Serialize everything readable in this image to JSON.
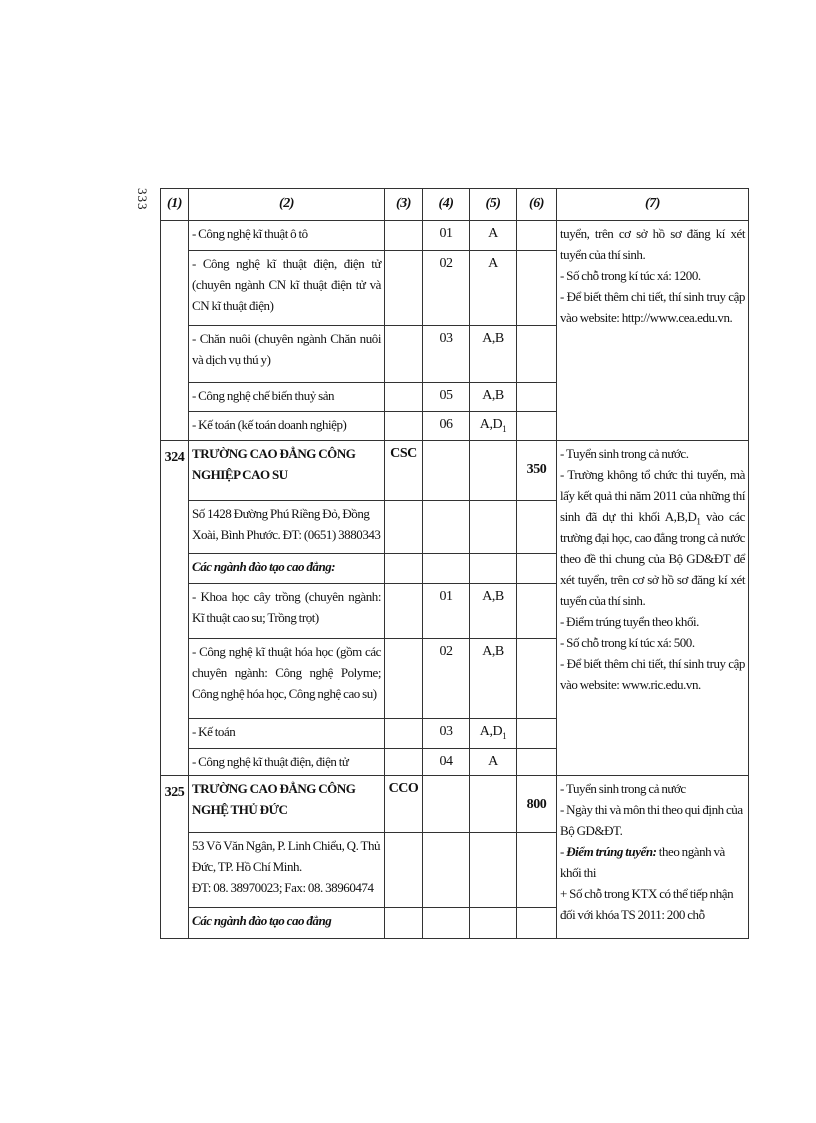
{
  "page_number": "333",
  "headers": [
    "(1)",
    "(2)",
    "(3)",
    "(4)",
    "(5)",
    "(6)",
    "(7)"
  ],
  "block1": {
    "rows": [
      {
        "name": "- Công nghệ kĩ thuật ô tô",
        "code": "01",
        "block": "A"
      },
      {
        "name": "- Công nghệ kĩ thuật điện, điện tử (chuyên ngành CN kĩ thuật điện tử và CN kĩ thuật điện)",
        "code": "02",
        "block": "A"
      },
      {
        "name": "- Chăn nuôi (chuyên ngành Chăn nuôi và dịch vụ thú y)",
        "code": "03",
        "block": "A,B"
      },
      {
        "name": "- Công nghệ chế biến thuỷ sản",
        "code": "05",
        "block": "A,B"
      },
      {
        "name": "- Kế toán (kế toán doanh nghiệp)",
        "code": "06",
        "block": "A,D",
        "block_sub": "1"
      }
    ],
    "notes": [
      "tuyển, trên cơ sở hồ sơ đăng kí xét tuyển của thí sinh.",
      "- Số chỗ trong kí túc xá: 1200.",
      "- Để biết thêm chi tiết, thí sinh truy cập vào website: http://www.cea.edu.vn."
    ]
  },
  "block2": {
    "id": "324",
    "school": "TRƯỜNG CAO ĐẲNG CÔNG NGHIỆP CAO SU",
    "symbol": "CSC",
    "quota": "350",
    "address": "Số 1428 Đường Phú Riềng Đỏ, Đồng Xoài, Bình Phước. ĐT: (0651) 3880343",
    "section": "Các ngành đào tạo cao đẳng:",
    "rows": [
      {
        "name": "- Khoa học cây trồng (chuyên ngành: Kĩ thuật cao su; Trồng trọt)",
        "code": "01",
        "block": "A,B"
      },
      {
        "name": "- Công nghệ kĩ thuật hóa học (gồm các chuyên ngành: Công nghệ Polyme; Công nghệ hóa học, Công nghệ cao su)",
        "code": "02",
        "block": "A,B"
      },
      {
        "name": "- Kế toán",
        "code": "03",
        "block": "A,D",
        "block_sub": "1"
      },
      {
        "name": "- Công nghệ kĩ thuật điện, điện tử",
        "code": "04",
        "block": "A"
      }
    ],
    "notes": {
      "n1": "- Tuyển sinh trong cả nước.",
      "n2a": "- Trường không tổ chức thi tuyển, mà lấy kết quả thi năm 2011 của những thí sinh đã dự thi khối A,B,D",
      "n2sub": "1",
      "n2b": " vào các trường đại học, cao đẳng trong cả nước theo đề thi chung của Bộ GD&ĐT để xét tuyển, trên cơ sở hồ sơ đăng kí xét tuyển của thí sinh.",
      "n3": "- Điểm trúng tuyển theo khối.",
      "n4": "- Số chỗ trong kí túc xá: 500.",
      "n5": "- Để biết thêm chi tiết, thí sinh truy cập vào website: www.ric.edu.vn."
    }
  },
  "block3": {
    "id": "325",
    "school": "TRƯỜNG CAO ĐẲNG CÔNG NGHỆ THỦ ĐỨC",
    "symbol": "CCO",
    "quota": "800",
    "address1": "53 Võ Văn Ngân, P. Linh Chiểu, Q. Thủ Đức, TP. Hồ Chí Minh.",
    "address2": "ĐT: 08. 38970023; Fax: 08. 38960474",
    "section": "Các ngành đào tạo cao đẳng",
    "notes": {
      "n1": "- Tuyển sinh trong cả nước",
      "n2": "- Ngày thi và môn thi theo qui định của Bộ GD&ĐT.",
      "n3_dash": "- ",
      "n3_bold": "Điểm trúng tuyển:",
      "n3_rest": " theo ngành và khối thi",
      "n4": "+ Số chỗ trong KTX có thể tiếp nhận đối với khóa TS 2011: 200 chỗ"
    }
  }
}
